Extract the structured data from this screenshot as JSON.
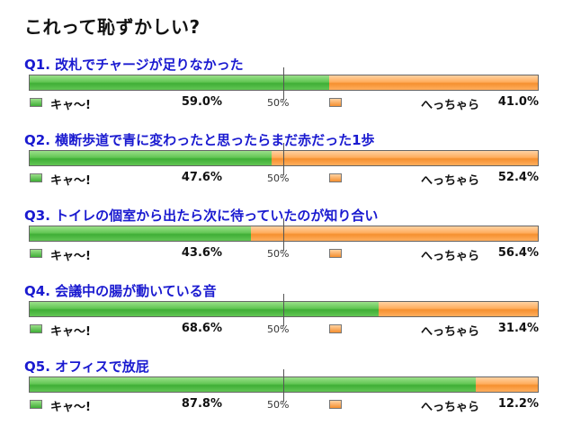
{
  "title": "これって恥ずかしい?",
  "labels": {
    "yes": "キャ〜!",
    "no": "へっちゃら",
    "mid": "50%"
  },
  "colors": {
    "yes": "#3fae36",
    "no": "#f5902f",
    "question": "#1a1ad0"
  },
  "chart_data": {
    "type": "bar",
    "stacked": true,
    "orientation": "horizontal",
    "title": "これって恥ずかしい?",
    "categories": [
      "Q1. 改札でチャージが足りなかった",
      "Q2. 横断歩道で青に変わったと思ったらまだ赤だった1歩",
      "Q3. トイレの個室から出たら次に待っていたのが知り合い",
      "Q4. 会議中の腸が動いている音",
      "Q5. オフィスで放屁"
    ],
    "series": [
      {
        "name": "キャ〜!",
        "values": [
          59.0,
          47.6,
          43.6,
          68.6,
          87.8
        ]
      },
      {
        "name": "へっちゃら",
        "values": [
          41.0,
          52.4,
          56.4,
          31.4,
          12.2
        ]
      }
    ],
    "value_labels": {
      "yes": [
        "59.0%",
        "47.6%",
        "43.6%",
        "68.6%",
        "87.8%"
      ],
      "no": [
        "41.0%",
        "52.4%",
        "56.4%",
        "31.4%",
        "12.2%"
      ]
    },
    "xlim": [
      0,
      100
    ]
  }
}
